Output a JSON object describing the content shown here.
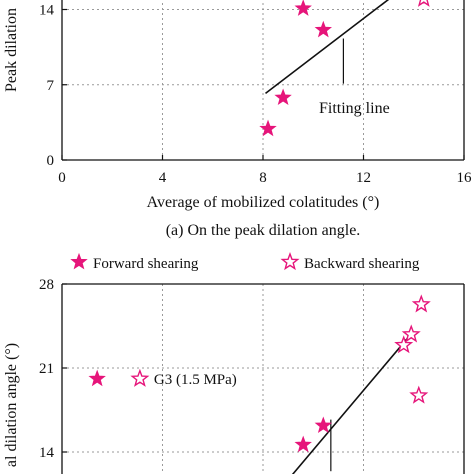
{
  "chart_data": [
    {
      "type": "scatter",
      "title": "",
      "caption": "(a) On the peak dilation angle.",
      "xlabel": "Average of mobilized colatitudes (°)",
      "ylabel": "Peak dilation",
      "xlim": [
        0,
        16
      ],
      "ylim": [
        0,
        16
      ],
      "x_ticks": [
        0,
        4,
        8,
        12,
        16
      ],
      "y_ticks": [
        0,
        7,
        14
      ],
      "x_tick_labels": [
        "0",
        "4",
        "8",
        "12",
        "16"
      ],
      "y_tick_labels": [
        "0",
        "7",
        "14"
      ],
      "grid": true,
      "series": [
        {
          "marker": "filled-star",
          "color": "#e6157a",
          "points": [
            [
              9.6,
              14.1
            ],
            [
              10.4,
              12.1
            ],
            [
              8.8,
              5.8
            ],
            [
              8.2,
              2.9
            ]
          ]
        },
        {
          "marker": "open-star",
          "color": "#e6157a",
          "points": [
            [
              14.4,
              15.0
            ]
          ]
        }
      ],
      "fitting_line": {
        "x": [
          8.1,
          13.2
        ],
        "y": [
          6.2,
          15.3
        ]
      },
      "annotation": {
        "text": "Fitting line",
        "leader_from": [
          11.2,
          11.3
        ],
        "leader_to": [
          11.2,
          7.1
        ]
      }
    },
    {
      "type": "scatter",
      "title": "",
      "ylabel": "al dilation angle (°)",
      "xlim": [
        0,
        16
      ],
      "ylim": [
        10,
        28
      ],
      "y_ticks": [
        14,
        21,
        28
      ],
      "y_tick_labels": [
        "14",
        "21",
        "28"
      ],
      "grid": true,
      "legend": {
        "position": "top",
        "entries": [
          {
            "label": "Forward shearing",
            "marker": "filled-star"
          },
          {
            "label": "Backward shearing",
            "marker": "open-star"
          }
        ]
      },
      "series": [
        {
          "name": "Forward shearing",
          "marker": "filled-star",
          "color": "#e6157a",
          "points": [
            [
              9.6,
              14.6
            ],
            [
              10.4,
              16.2
            ]
          ]
        },
        {
          "name": "Backward shearing",
          "marker": "open-star",
          "color": "#e6157a",
          "points": [
            [
              14.3,
              26.3
            ],
            [
              13.9,
              23.8
            ],
            [
              13.6,
              22.9
            ],
            [
              14.2,
              18.7
            ]
          ]
        }
      ],
      "inline_key": {
        "filled_at": [
          1.4,
          20.1
        ],
        "open_at": [
          3.1,
          20.1
        ],
        "text": "G3 (1.5 MPa)"
      },
      "fitting_line": {
        "x": [
          8.6,
          13.8
        ],
        "y": [
          10.7,
          23.6
        ]
      },
      "leader": {
        "from": [
          10.7,
          16.7
        ],
        "to": [
          10.7,
          12.4
        ]
      }
    }
  ]
}
